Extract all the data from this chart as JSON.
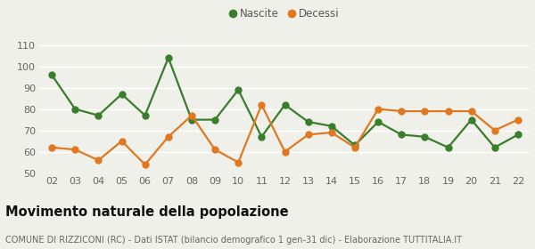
{
  "years": [
    "02",
    "03",
    "04",
    "05",
    "06",
    "07",
    "08",
    "09",
    "10",
    "11",
    "12",
    "13",
    "14",
    "15",
    "16",
    "17",
    "18",
    "19",
    "20",
    "21",
    "22"
  ],
  "nascite": [
    96,
    80,
    77,
    87,
    77,
    104,
    75,
    75,
    89,
    67,
    82,
    74,
    72,
    63,
    74,
    68,
    67,
    62,
    75,
    62,
    68
  ],
  "decessi": [
    62,
    61,
    56,
    65,
    54,
    67,
    77,
    61,
    55,
    82,
    60,
    68,
    69,
    62,
    80,
    79,
    79,
    79,
    79,
    70,
    75
  ],
  "nascite_color": "#3a7d2c",
  "decessi_color": "#e07820",
  "background_color": "#f0f0eb",
  "grid_color": "#ffffff",
  "ylim": [
    50,
    113
  ],
  "yticks": [
    50,
    60,
    70,
    80,
    90,
    100,
    110
  ],
  "title": "Movimento naturale della popolazione",
  "subtitle": "COMUNE DI RIZZICONI (RC) - Dati ISTAT (bilancio demografico 1 gen-31 dic) - Elaborazione TUTTITALIA.IT",
  "legend_nascite": "Nascite",
  "legend_decessi": "Decessi",
  "title_fontsize": 10.5,
  "subtitle_fontsize": 7,
  "tick_fontsize": 8,
  "legend_fontsize": 8.5,
  "marker_size": 5,
  "line_width": 1.6
}
